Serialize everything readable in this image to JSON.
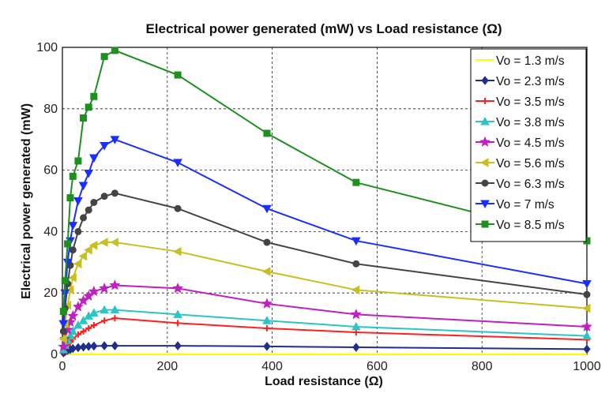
{
  "chart_data": {
    "type": "line",
    "title": "Electrical power generated (mW) vs Load resistance (Ω)",
    "xlabel": "Load resistance (Ω)",
    "ylabel": "Electrical power generated (mW)",
    "xlim": [
      0,
      1000
    ],
    "ylim": [
      0,
      100
    ],
    "xticks": [
      0,
      200,
      400,
      600,
      800,
      1000
    ],
    "yticks": [
      0,
      20,
      40,
      60,
      80,
      100
    ],
    "grid": true,
    "legend_position": "top-right",
    "series": [
      {
        "name": "Vo = 1.3 m/s",
        "color": "#ffff00",
        "marker": "none",
        "x": [
          0,
          10,
          20,
          30,
          40,
          60,
          80,
          100,
          220,
          390,
          560,
          1000
        ],
        "y": [
          0.1,
          0.1,
          0.1,
          0.1,
          0.1,
          0.1,
          0.1,
          0.1,
          0.1,
          0.1,
          0.1,
          0.1
        ]
      },
      {
        "name": "Vo = 2.3 m/s",
        "color": "#1f2f8a",
        "marker": "diamond",
        "x": [
          2,
          5,
          10,
          15,
          20,
          30,
          40,
          50,
          60,
          80,
          100,
          220,
          390,
          560,
          1000
        ],
        "y": [
          0.5,
          0.9,
          1.3,
          1.6,
          1.9,
          2.2,
          2.4,
          2.6,
          2.7,
          2.8,
          2.8,
          2.8,
          2.6,
          2.3,
          1.7
        ]
      },
      {
        "name": "Vo = 3.5 m/s",
        "color": "#ff2020",
        "marker": "plus",
        "x": [
          2,
          5,
          10,
          15,
          20,
          30,
          40,
          50,
          60,
          80,
          100,
          220,
          390,
          560,
          1000
        ],
        "y": [
          1,
          2,
          3,
          4,
          5,
          6.5,
          7.5,
          8.5,
          9.5,
          11,
          11.8,
          10.2,
          8.5,
          7.2,
          4.8
        ]
      },
      {
        "name": "Vo = 3.8 m/s",
        "color": "#2ec4c4",
        "marker": "triangle-up",
        "x": [
          2,
          5,
          10,
          15,
          20,
          30,
          40,
          50,
          60,
          80,
          100,
          220,
          390,
          560,
          1000
        ],
        "y": [
          1.5,
          3,
          4.5,
          6,
          7.5,
          9.5,
          11,
          12.5,
          13.5,
          14.5,
          14.5,
          13,
          11,
          9,
          6
        ]
      },
      {
        "name": "Vo = 4.5 m/s",
        "color": "#c020c0",
        "marker": "star",
        "x": [
          2,
          5,
          10,
          15,
          20,
          30,
          40,
          50,
          60,
          80,
          100,
          220,
          390,
          560,
          1000
        ],
        "y": [
          2.5,
          5,
          8,
          10.5,
          12.5,
          15.5,
          17.5,
          19,
          20.5,
          21.5,
          22.5,
          21.5,
          16.5,
          13,
          9
        ]
      },
      {
        "name": "Vo = 5.6 m/s",
        "color": "#c8c020",
        "marker": "triangle-left",
        "x": [
          2,
          5,
          10,
          15,
          20,
          30,
          40,
          50,
          60,
          80,
          100,
          220,
          390,
          560,
          1000
        ],
        "y": [
          5,
          10,
          16,
          21,
          25,
          29.5,
          32,
          34,
          35.5,
          36.5,
          36.5,
          33.5,
          27,
          21,
          15
        ]
      },
      {
        "name": "Vo = 6.3 m/s",
        "color": "#444444",
        "marker": "circle",
        "x": [
          2,
          5,
          10,
          15,
          20,
          30,
          40,
          50,
          60,
          80,
          100,
          220,
          390,
          560,
          1000
        ],
        "y": [
          7.5,
          15,
          23,
          29,
          34,
          40,
          44.5,
          47,
          49.5,
          51.5,
          52.5,
          47.5,
          36.5,
          29.5,
          19.5
        ]
      },
      {
        "name": "Vo = 7 m/s",
        "color": "#1a2fff",
        "marker": "triangle-down",
        "x": [
          2,
          5,
          10,
          15,
          20,
          30,
          40,
          50,
          60,
          80,
          100,
          220,
          390,
          560,
          1000
        ],
        "y": [
          10,
          20,
          30,
          37,
          42,
          50,
          55,
          59,
          64,
          68,
          70,
          62.5,
          47.5,
          37,
          23
        ]
      },
      {
        "name": "Vo = 8.5 m/s",
        "color": "#1f8f1f",
        "marker": "square",
        "x": [
          2,
          5,
          10,
          15,
          20,
          30,
          40,
          50,
          60,
          80,
          100,
          220,
          390,
          560,
          1000
        ],
        "y": [
          14,
          24,
          36,
          51,
          58,
          63,
          77,
          80.5,
          84,
          97,
          99,
          91,
          72,
          56,
          37
        ]
      }
    ]
  }
}
